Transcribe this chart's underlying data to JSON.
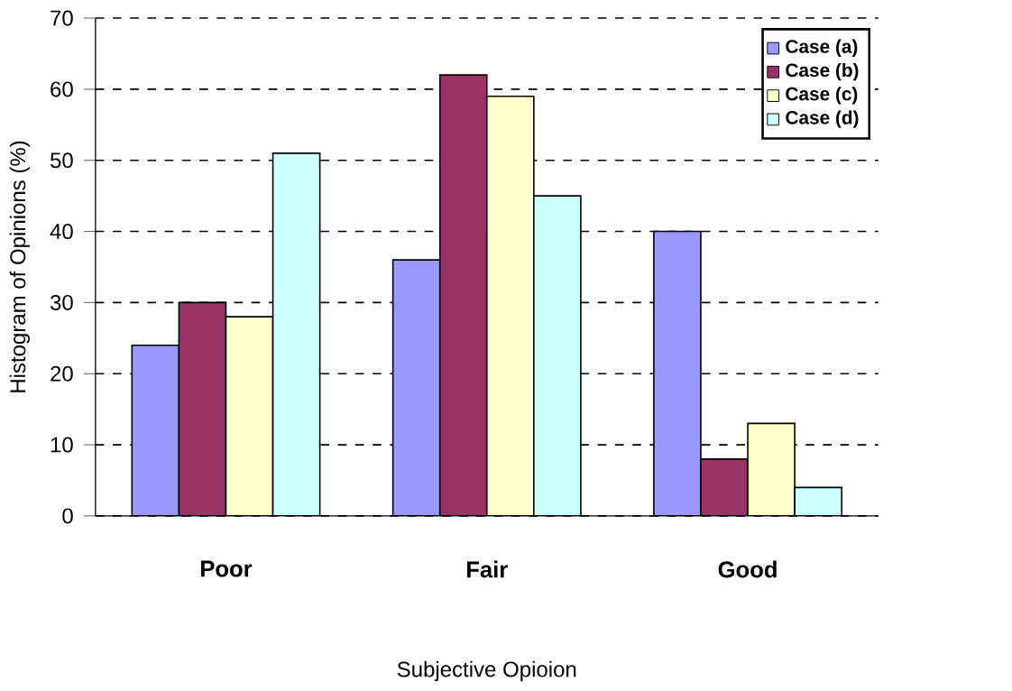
{
  "chart_data": {
    "type": "bar",
    "xlabel": "Subjective Opioion",
    "ylabel": "Histogram of Opinions (%)",
    "categories": [
      "Poor",
      "Fair",
      "Good"
    ],
    "series": [
      {
        "name": "Case (a)",
        "color": "#9999ff",
        "values": [
          24,
          36,
          40
        ]
      },
      {
        "name": "Case (b)",
        "color": "#993366",
        "values": [
          30,
          62,
          8
        ]
      },
      {
        "name": "Case (c)",
        "color": "#ffffcc",
        "values": [
          28,
          59,
          13
        ]
      },
      {
        "name": "Case (d)",
        "color": "#ccffff",
        "values": [
          51,
          45,
          4
        ]
      }
    ],
    "ylim": [
      0,
      70
    ],
    "yticks": [
      0,
      10,
      20,
      30,
      40,
      50,
      60,
      70
    ],
    "grid": "y",
    "legend": "top right"
  }
}
